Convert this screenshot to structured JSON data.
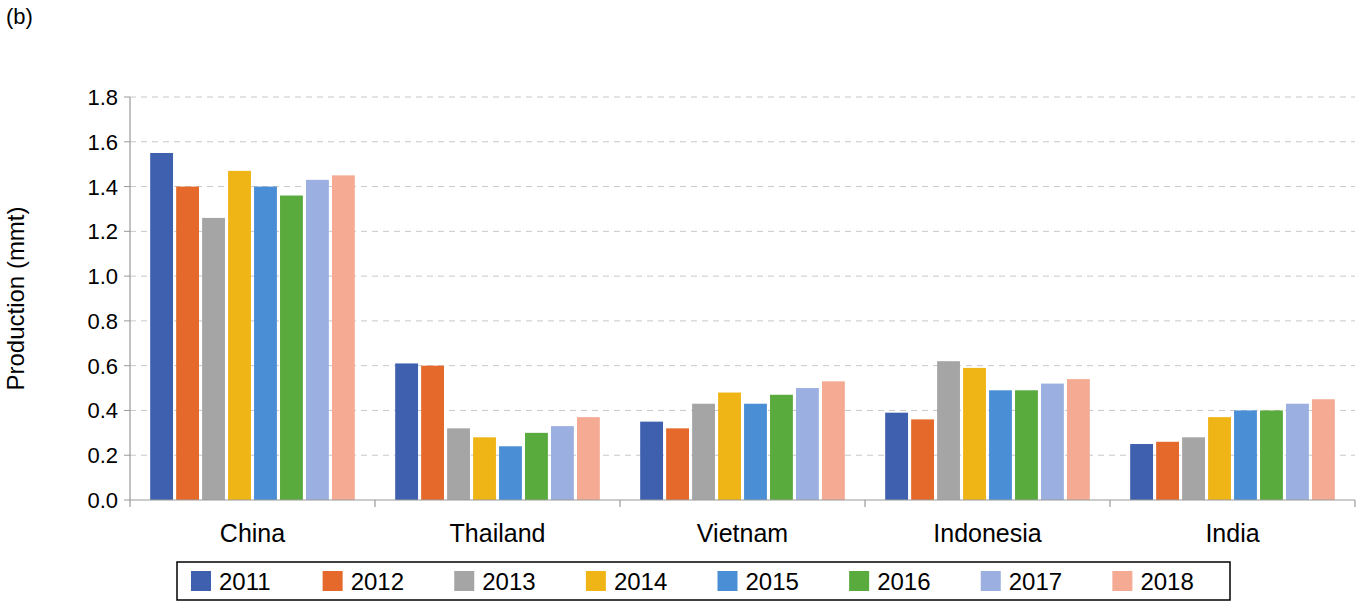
{
  "chart_data": {
    "type": "bar",
    "title": "(b)",
    "y_label": "Production (mmt)",
    "categories": [
      "China",
      "Thailand",
      "Vietnam",
      "Indonesia",
      "India"
    ],
    "series": [
      {
        "name": "2011",
        "color": "#3f60ae",
        "values": [
          1.55,
          0.61,
          0.35,
          0.39,
          0.25
        ]
      },
      {
        "name": "2012",
        "color": "#e4692a",
        "values": [
          1.4,
          0.6,
          0.32,
          0.36,
          0.26
        ]
      },
      {
        "name": "2013",
        "color": "#a5a5a5",
        "values": [
          1.26,
          0.32,
          0.43,
          0.62,
          0.28
        ]
      },
      {
        "name": "2014",
        "color": "#efb415",
        "values": [
          1.47,
          0.28,
          0.48,
          0.59,
          0.37
        ]
      },
      {
        "name": "2015",
        "color": "#4a8fd6",
        "values": [
          1.4,
          0.24,
          0.43,
          0.49,
          0.4
        ]
      },
      {
        "name": "2016",
        "color": "#5aab3d",
        "values": [
          1.36,
          0.3,
          0.47,
          0.49,
          0.4
        ]
      },
      {
        "name": "2017",
        "color": "#9bafe0",
        "values": [
          1.43,
          0.33,
          0.5,
          0.52,
          0.43
        ]
      },
      {
        "name": "2018",
        "color": "#f4aa93",
        "values": [
          1.45,
          0.37,
          0.53,
          0.54,
          0.45
        ]
      }
    ],
    "ylim": [
      0,
      1.8
    ],
    "yticks": [
      {
        "value": 0,
        "label": "0.0"
      },
      0.2,
      0.4,
      0.6,
      0.8,
      {
        "value": 1,
        "label": "1.0"
      },
      1.2,
      1.4,
      1.6,
      1.8
    ],
    "grid": true,
    "legend": "bottom"
  }
}
